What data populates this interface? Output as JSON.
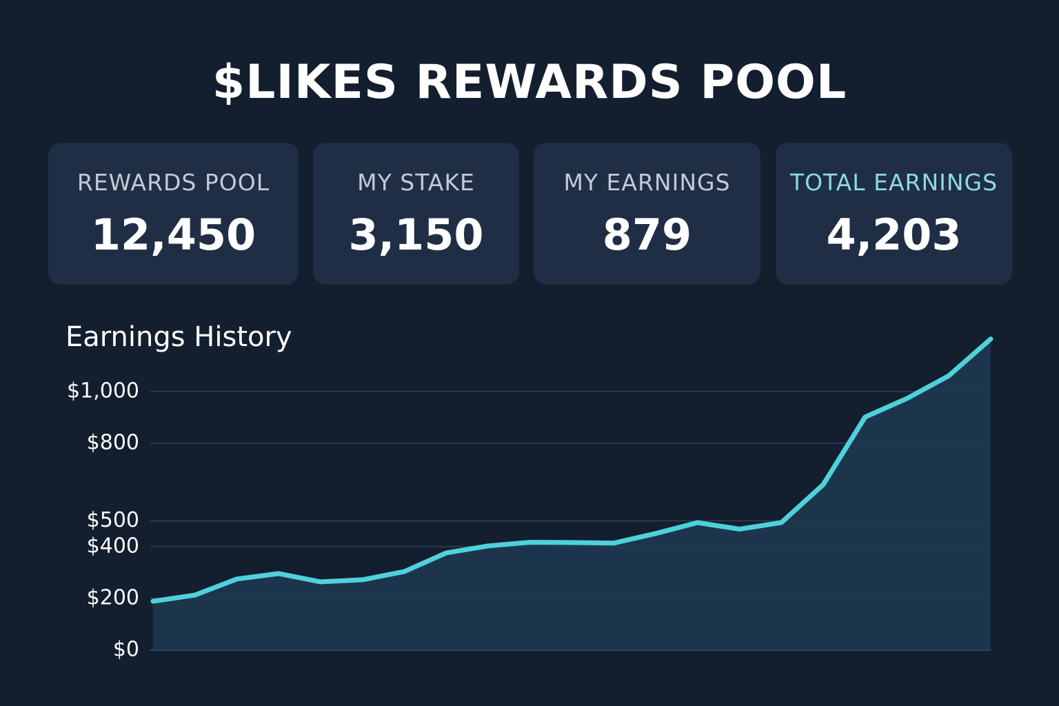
{
  "header": {
    "title": "$LIKES REWARDS POOL"
  },
  "cards": [
    {
      "label": "REWARDS POOL",
      "value": "12,450"
    },
    {
      "label": "MY STAKE",
      "value": "3,150"
    },
    {
      "label": "MY EARNINGS",
      "value": "879"
    },
    {
      "label": "TOTAL EARNINGS",
      "value": "4,203"
    }
  ],
  "chart_data": {
    "type": "area",
    "title": "Earnings History",
    "categories": [
      null,
      null,
      null,
      null,
      null,
      null,
      null,
      null,
      null,
      null,
      null,
      null,
      null,
      null,
      null,
      null,
      null,
      null,
      null,
      null,
      null
    ],
    "values": [
      189,
      213,
      275,
      296,
      264,
      272,
      304,
      376,
      403,
      417,
      416,
      414,
      451,
      493,
      468,
      493,
      640,
      901,
      973,
      1061,
      1203
    ],
    "color": "#4fd1dc",
    "fill": "#1f3a52",
    "ylim": [
      0,
      1250
    ],
    "yticks": [
      {
        "value": 0,
        "label": "$0"
      },
      {
        "value": 200,
        "label": "$200"
      },
      {
        "value": 400,
        "label": "$400"
      },
      {
        "value": 500,
        "label": "$500"
      },
      {
        "value": 800,
        "label": "$800"
      },
      {
        "value": 1000,
        "label": "$1,000"
      }
    ],
    "grid": true
  }
}
